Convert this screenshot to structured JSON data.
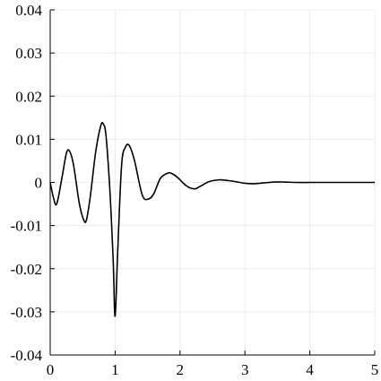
{
  "chart_data": {
    "type": "line",
    "title": "",
    "xlabel": "",
    "ylabel": "",
    "xlim": [
      0,
      5
    ],
    "ylim": [
      -0.04,
      0.04
    ],
    "grid": true,
    "x_ticks": [
      0,
      1,
      2,
      3,
      4,
      5
    ],
    "x_tick_labels": [
      "0",
      "1",
      "2",
      "3",
      "4",
      "5"
    ],
    "y_ticks": [
      0.04,
      0.03,
      0.02,
      0.01,
      0,
      -0.01,
      -0.02,
      -0.03,
      -0.04
    ],
    "y_tick_labels": [
      "0.04",
      "0.03",
      "0.02",
      "0.01",
      "0",
      "-0.01",
      "-0.02",
      "-0.03",
      "-0.04"
    ],
    "colors": {
      "line": "#000000",
      "grid": "#ebebeb",
      "axis": "#000000"
    },
    "series": [
      {
        "x": [
          0,
          0.05,
          0.1,
          0.18,
          0.25,
          0.3,
          0.36,
          0.45,
          0.52,
          0.56,
          0.62,
          0.7,
          0.78,
          0.82,
          0.86,
          0.92,
          0.97,
          1.0,
          1.04,
          1.1,
          1.16,
          1.22,
          1.3,
          1.42,
          1.52,
          1.6,
          1.7,
          1.82,
          1.88,
          1.96,
          2.1,
          2.22,
          2.3,
          2.45,
          2.6,
          2.7,
          2.85,
          3.0,
          3.15,
          3.3,
          3.45,
          3.6,
          3.8,
          4.0,
          4.2,
          4.4,
          4.6,
          4.8,
          5.0
        ],
        "y": [
          0,
          -0.0035,
          -0.005,
          0.001,
          0.0068,
          0.0072,
          0.004,
          -0.005,
          -0.0088,
          -0.0086,
          -0.003,
          0.007,
          0.0132,
          0.0135,
          0.0108,
          -0.002,
          -0.018,
          -0.031,
          -0.016,
          0.004,
          0.0082,
          0.0085,
          0.005,
          -0.003,
          -0.0038,
          -0.0025,
          0.001,
          0.0022,
          0.002,
          0.0012,
          -0.0008,
          -0.0015,
          -0.001,
          0.0002,
          0.0006,
          0.0005,
          0.0002,
          -0.0002,
          -0.0003,
          -0.0001,
          0.0001,
          0.0001,
          0,
          0,
          0,
          0,
          0,
          0,
          0
        ]
      }
    ]
  }
}
